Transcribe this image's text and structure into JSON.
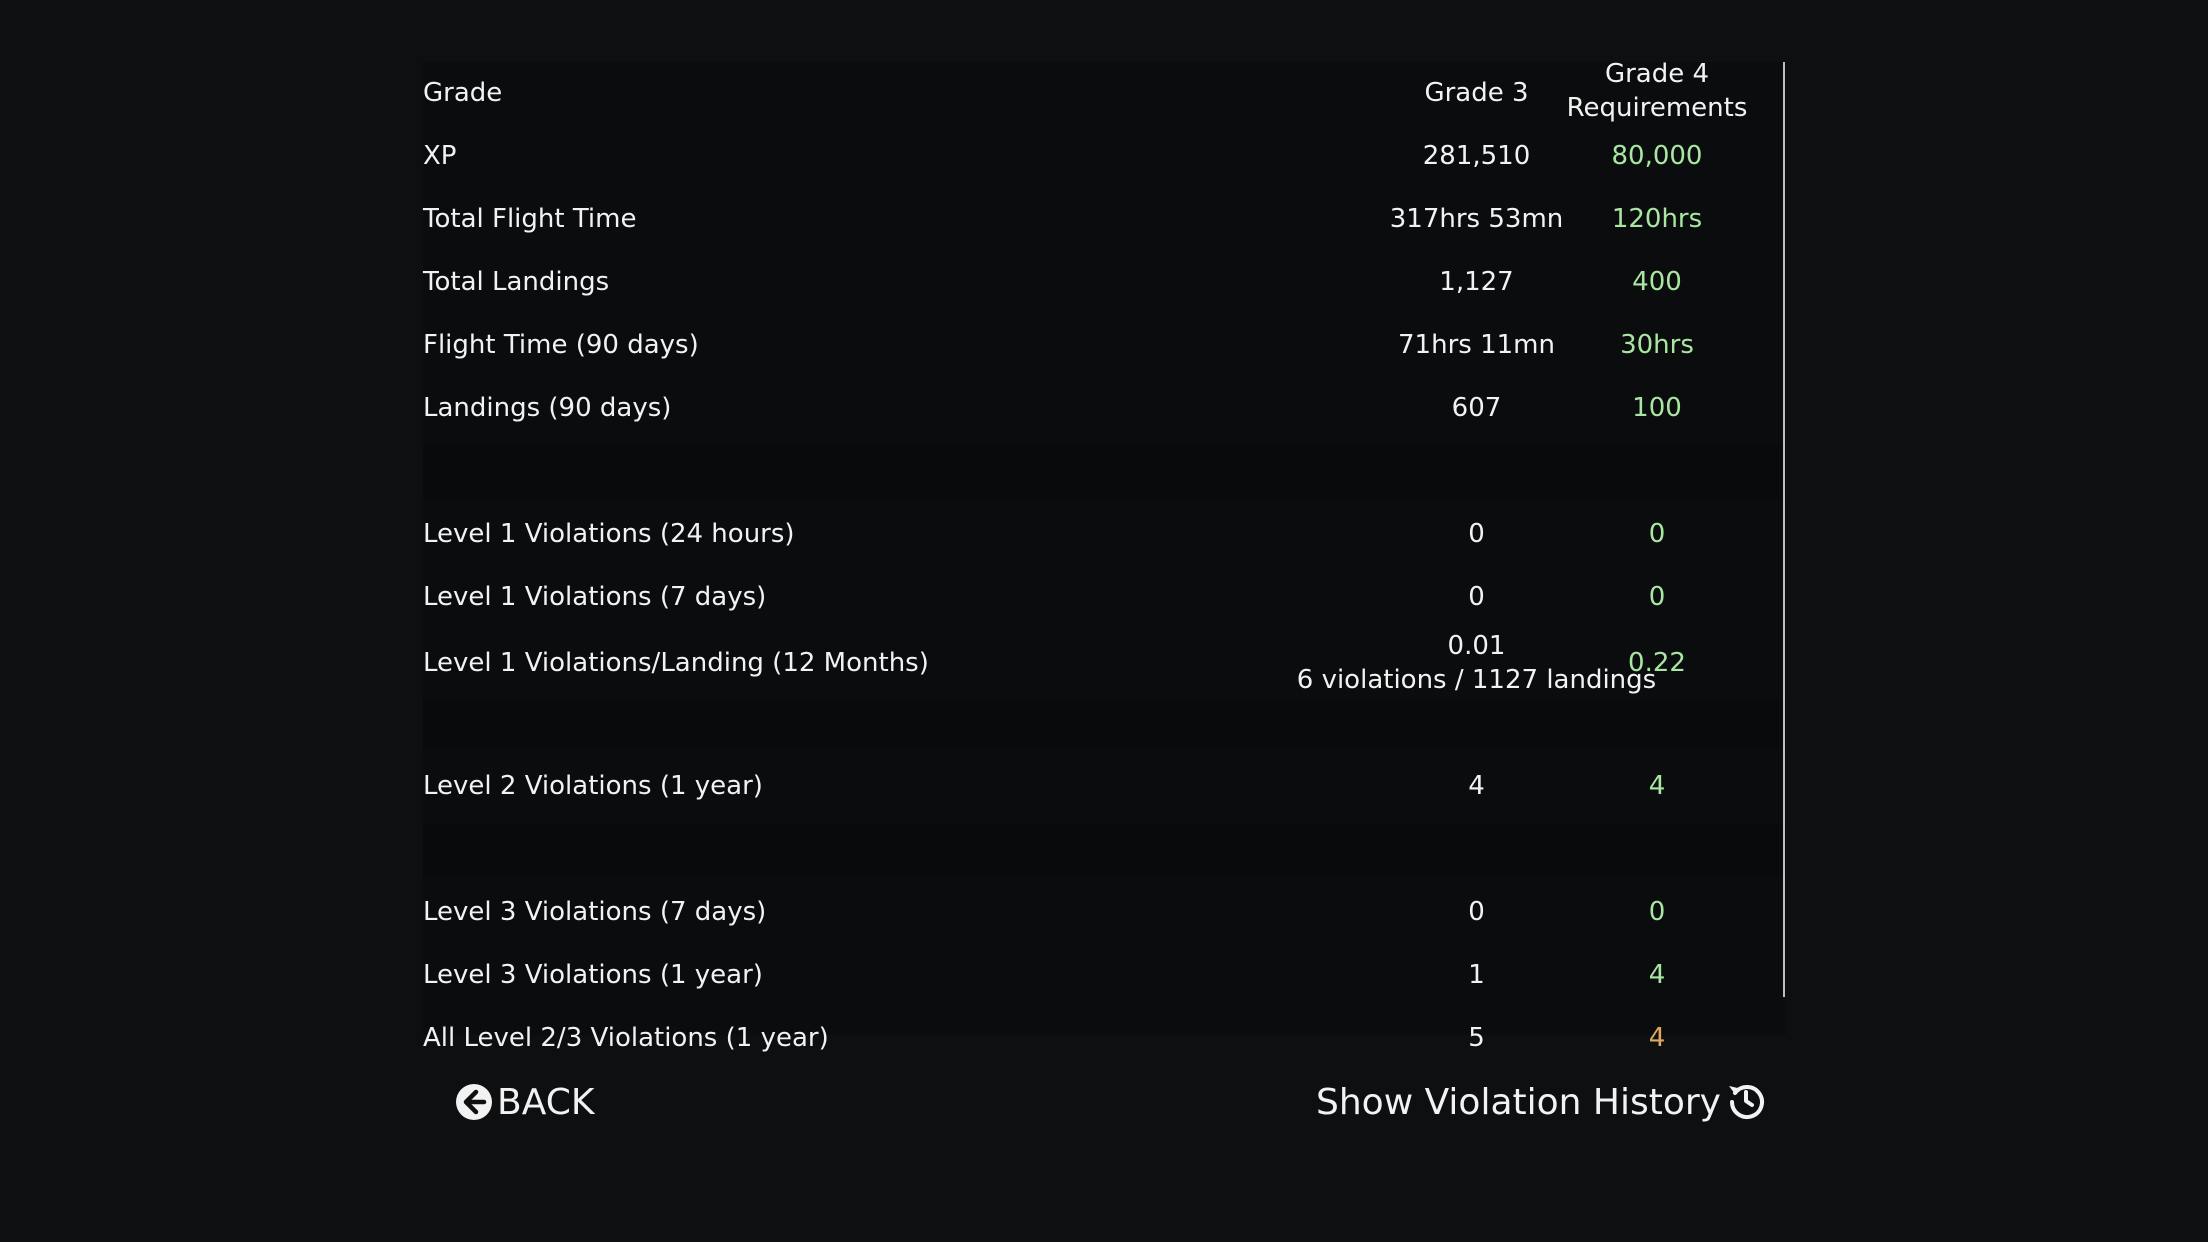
{
  "table": {
    "header": {
      "label": "Grade",
      "current": "Grade 3",
      "requirement": "Grade 4\nRequirements"
    },
    "rows": [
      {
        "label": "XP",
        "value": "281,510",
        "requirement": "80,000"
      },
      {
        "label": "Total Flight Time",
        "value": "317hrs 53mn",
        "requirement": "120hrs"
      },
      {
        "label": "Total Landings",
        "value": "1,127",
        "requirement": "400"
      },
      {
        "label": "Flight Time (90 days)",
        "value": "71hrs 11mn",
        "requirement": "30hrs"
      },
      {
        "label": "Landings (90 days)",
        "value": "607",
        "requirement": "100"
      },
      {
        "label": "Level 1 Violations (24 hours)",
        "value": "0",
        "requirement": "0"
      },
      {
        "label": "Level 1 Violations (7 days)",
        "value": "0",
        "requirement": "0"
      },
      {
        "label": "Level 1 Violations/Landing (12 Months)",
        "value": "0.01",
        "value_detail": "6 violations / 1127 landings",
        "requirement": "0.22"
      },
      {
        "label": "Level 2 Violations (1 year)",
        "value": "4",
        "requirement": "4"
      },
      {
        "label": "Level 3 Violations (7 days)",
        "value": "0",
        "requirement": "0"
      },
      {
        "label": "Level 3 Violations (1 year)",
        "value": "1",
        "requirement": "4"
      },
      {
        "label": "All Level 2/3 Violations (1 year)",
        "value": "5",
        "requirement": "4"
      }
    ]
  },
  "footer": {
    "back_label": "BACK",
    "history_label": "Show Violation History"
  },
  "colors": {
    "background": "#0e0f11",
    "panel": "#0b0c0e",
    "requirement_ok": "#a8e6a1",
    "requirement_warn": "#e0a85a",
    "text": "#f2f2f2"
  },
  "icons": {
    "back": "arrow-circle-left-icon",
    "history": "history-icon"
  }
}
